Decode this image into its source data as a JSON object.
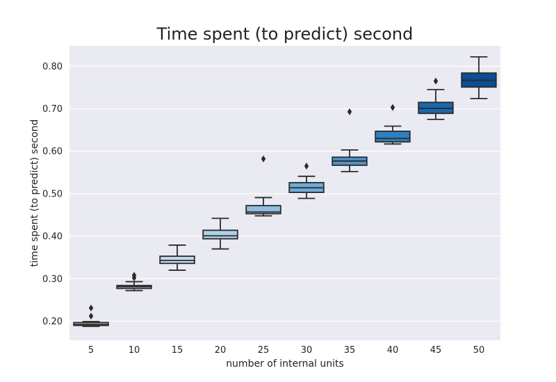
{
  "chart_data": {
    "type": "box",
    "title": "Time spent (to predict) second",
    "xlabel": "number of internal units",
    "ylabel": "time spent (to predict) second",
    "ylim": [
      0.155,
      0.848
    ],
    "yticks": [
      "0.20",
      "0.30",
      "0.40",
      "0.50",
      "0.60",
      "0.70",
      "0.80"
    ],
    "grid": true,
    "background": "#eaeaf2",
    "gridColor": "#ffffff",
    "edgeColor": "#2a2a2a",
    "boxes": [
      {
        "label": "5",
        "color": "#e3eef9",
        "whisker_low": 0.188,
        "q1": 0.19,
        "median": 0.193,
        "q3": 0.197,
        "whisker_high": 0.199,
        "outliers": [
          0.212,
          0.231
        ]
      },
      {
        "label": "10",
        "color": "#d4e3f3",
        "whisker_low": 0.272,
        "q1": 0.277,
        "median": 0.281,
        "q3": 0.284,
        "whisker_high": 0.293,
        "outliers": [
          0.302,
          0.308
        ]
      },
      {
        "label": "15",
        "color": "#c3d8ee",
        "whisker_low": 0.32,
        "q1": 0.336,
        "median": 0.343,
        "q3": 0.353,
        "whisker_high": 0.379,
        "outliers": []
      },
      {
        "label": "20",
        "color": "#aed0e6",
        "whisker_low": 0.37,
        "q1": 0.394,
        "median": 0.401,
        "q3": 0.414,
        "whisker_high": 0.442,
        "outliers": []
      },
      {
        "label": "25",
        "color": "#92bedf",
        "whisker_low": 0.448,
        "q1": 0.453,
        "median": 0.457,
        "q3": 0.472,
        "whisker_high": 0.491,
        "outliers": [
          0.582
        ]
      },
      {
        "label": "30",
        "color": "#6eaad6",
        "whisker_low": 0.489,
        "q1": 0.503,
        "median": 0.514,
        "q3": 0.526,
        "whisker_high": 0.541,
        "outliers": [
          0.565
        ]
      },
      {
        "label": "35",
        "color": "#4d95c9",
        "whisker_low": 0.552,
        "q1": 0.567,
        "median": 0.577,
        "q3": 0.586,
        "whisker_high": 0.603,
        "outliers": [
          0.693
        ]
      },
      {
        "label": "40",
        "color": "#3080bd",
        "whisker_low": 0.617,
        "q1": 0.622,
        "median": 0.63,
        "q3": 0.647,
        "whisker_high": 0.659,
        "outliers": [
          0.703
        ]
      },
      {
        "label": "45",
        "color": "#1b67ac",
        "whisker_low": 0.675,
        "q1": 0.689,
        "median": 0.701,
        "q3": 0.715,
        "whisker_high": 0.745,
        "outliers": [
          0.765
        ]
      },
      {
        "label": "50",
        "color": "#0d4d93",
        "whisker_low": 0.724,
        "q1": 0.751,
        "median": 0.767,
        "q3": 0.784,
        "whisker_high": 0.822,
        "outliers": []
      }
    ]
  }
}
